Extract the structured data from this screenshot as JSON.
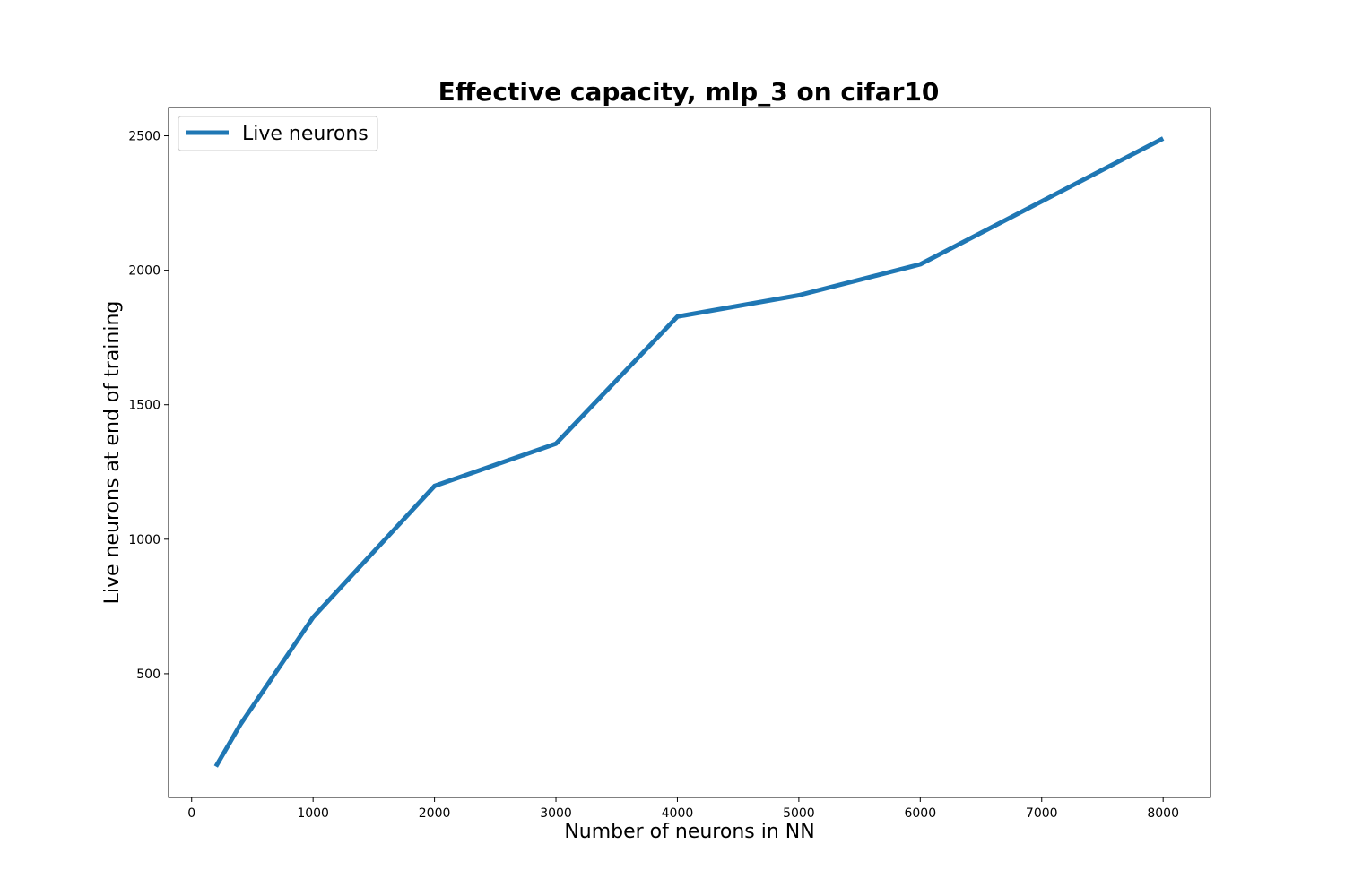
{
  "chart_data": {
    "type": "line",
    "title": "Effective capacity, mlp_3 on cifar10",
    "xlabel": "Number of neurons in NN",
    "ylabel": "Live neurons at end of training",
    "xlim": [
      -190,
      8390
    ],
    "ylim": [
      40,
      2605
    ],
    "xticks": [
      0,
      1000,
      2000,
      3000,
      4000,
      5000,
      6000,
      7000,
      8000
    ],
    "yticks": [
      500,
      1000,
      1500,
      2000,
      2500
    ],
    "grid": false,
    "legend_position": "upper left",
    "series": [
      {
        "name": "Live neurons",
        "color": "#1f77b4",
        "x": [
          200,
          400,
          1000,
          2000,
          3000,
          4000,
          5000,
          6000,
          8000
        ],
        "y": [
          155,
          310,
          710,
          1198,
          1355,
          1828,
          1907,
          2022,
          2490
        ]
      }
    ]
  }
}
